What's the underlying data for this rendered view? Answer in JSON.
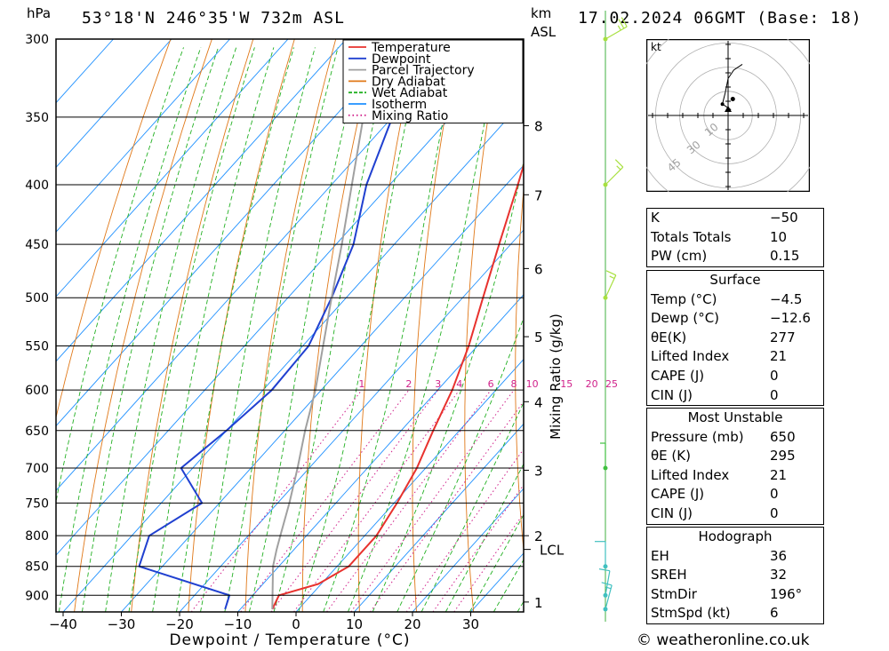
{
  "header": {
    "location": "53°18'N  246°35'W  732m  ASL",
    "datetime": "17.02.2024  06GMT  (Base: 18)",
    "left_unit": "hPa",
    "right_unit_km": "km",
    "right_unit_asl": "ASL"
  },
  "footer": {
    "copyright": "© weatheronline.co.uk"
  },
  "chart_data": [
    {
      "type": "line",
      "name": "skew-t log-p diagram",
      "xlabel": "Dewpoint / Temperature (°C)",
      "ylabel": "",
      "y_scale": "log-pressure",
      "y_ticks": [
        300,
        350,
        400,
        450,
        500,
        550,
        600,
        650,
        700,
        750,
        800,
        850,
        900
      ],
      "x_ticks": [
        -40,
        -30,
        -20,
        -10,
        0,
        10,
        20,
        30
      ],
      "xlim": [
        -40,
        38
      ],
      "ylim": [
        930,
        300
      ],
      "km_ticks": [
        {
          "km": "1",
          "p": 912
        },
        {
          "km": "2",
          "p": 800
        },
        {
          "km": "3",
          "p": 703
        },
        {
          "km": "4",
          "p": 614
        },
        {
          "km": "5",
          "p": 540
        },
        {
          "km": "6",
          "p": 472
        },
        {
          "km": "7",
          "p": 408
        },
        {
          "km": "8",
          "p": 356
        }
      ],
      "lcl": {
        "label": "LCL",
        "p": 822
      },
      "mixing_ratio_axis_label": "Mixing Ratio (g/kg)",
      "mixing_ratio_values": [
        "1",
        "2",
        "3",
        "4",
        "6",
        "8",
        "10",
        "15",
        "20",
        "25"
      ],
      "legend": {
        "placement": "top-right of plot",
        "entries": [
          {
            "label": "Temperature",
            "color": "#e8322e",
            "style": "solid"
          },
          {
            "label": "Dewpoint",
            "color": "#2040d0",
            "style": "solid"
          },
          {
            "label": "Parcel Trajectory",
            "color": "#a0a0a0",
            "style": "solid"
          },
          {
            "label": "Dry Adiabat",
            "color": "#e07818",
            "style": "solid"
          },
          {
            "label": "Wet Adiabat",
            "color": "#22b022",
            "style": "dashed"
          },
          {
            "label": "Isotherm",
            "color": "#1e90ff",
            "style": "solid"
          },
          {
            "label": "Mixing Ratio",
            "color": "#d0208a",
            "style": "dotted"
          }
        ]
      },
      "series": [
        {
          "name": "Temperature",
          "color": "#e8322e",
          "points": [
            {
              "p": 925,
              "t": -4.5
            },
            {
              "p": 900,
              "t": -5.5
            },
            {
              "p": 880,
              "t": -0.5
            },
            {
              "p": 850,
              "t": 2.0
            },
            {
              "p": 800,
              "t": 2.0
            },
            {
              "p": 750,
              "t": 0.5
            },
            {
              "p": 700,
              "t": -1.5
            },
            {
              "p": 650,
              "t": -4.5
            },
            {
              "p": 600,
              "t": -7.5
            },
            {
              "p": 550,
              "t": -11.5
            },
            {
              "p": 500,
              "t": -16.5
            },
            {
              "p": 450,
              "t": -22.0
            },
            {
              "p": 400,
              "t": -28.0
            },
            {
              "p": 350,
              "t": -35.0
            },
            {
              "p": 300,
              "t": -43.0
            }
          ]
        },
        {
          "name": "Dewpoint",
          "color": "#2040d0",
          "points": [
            {
              "p": 925,
              "t": -12.6
            },
            {
              "p": 900,
              "t": -14.0
            },
            {
              "p": 850,
              "t": -34.0
            },
            {
              "p": 800,
              "t": -37.0
            },
            {
              "p": 750,
              "t": -33.0
            },
            {
              "p": 700,
              "t": -42.0
            },
            {
              "p": 650,
              "t": -40.0
            },
            {
              "p": 600,
              "t": -38.5
            },
            {
              "p": 550,
              "t": -39.0
            },
            {
              "p": 500,
              "t": -42.5
            },
            {
              "p": 450,
              "t": -47.0
            },
            {
              "p": 400,
              "t": -54.0
            },
            {
              "p": 350,
              "t": -60.0
            },
            {
              "p": 300,
              "t": -73.0
            }
          ]
        },
        {
          "name": "Parcel Trajectory",
          "color": "#a0a0a0",
          "points": [
            {
              "p": 925,
              "t": -4.5
            },
            {
              "p": 850,
              "t": -11.0
            },
            {
              "p": 822,
              "t": -13.0
            },
            {
              "p": 800,
              "t": -14.5
            },
            {
              "p": 750,
              "t": -18.0
            },
            {
              "p": 700,
              "t": -22.0
            },
            {
              "p": 650,
              "t": -26.5
            },
            {
              "p": 600,
              "t": -31.0
            },
            {
              "p": 550,
              "t": -36.5
            },
            {
              "p": 500,
              "t": -42.5
            },
            {
              "p": 450,
              "t": -49.0
            },
            {
              "p": 400,
              "t": -56.5
            },
            {
              "p": 350,
              "t": -65.0
            },
            {
              "p": 300,
              "t": -75.0
            }
          ]
        }
      ]
    },
    {
      "type": "line",
      "name": "hodograph",
      "unit_label": "kt",
      "ring_labels": [
        "10",
        "30",
        "45"
      ],
      "points_kt": [
        {
          "u": 1,
          "v": 2
        },
        {
          "u": -2,
          "v": 4
        },
        {
          "u": -1,
          "v": 8
        },
        {
          "u": 0,
          "v": 13
        },
        {
          "u": 2,
          "v": 16
        },
        {
          "u": 5,
          "v": 18
        }
      ],
      "storm_motion": {
        "dir_deg": 196,
        "speed_kt": 6
      }
    }
  ],
  "wind_profile": {
    "levels": [
      {
        "p": 300,
        "dir": 240,
        "kt": 25,
        "color": "#a8e040"
      },
      {
        "p": 400,
        "dir": 225,
        "kt": 15,
        "color": "#a8e040"
      },
      {
        "p": 500,
        "dir": 205,
        "kt": 15,
        "color": "#a8e040"
      },
      {
        "p": 700,
        "dir": 180,
        "kt": 5,
        "color": "#40c040"
      },
      {
        "p": 850,
        "dir": 180,
        "kt": 10,
        "color": "#40c0c0"
      },
      {
        "p": 900,
        "dir": 190,
        "kt": 10,
        "color": "#40c0c0"
      },
      {
        "p": 925,
        "dir": 195,
        "kt": 15,
        "color": "#40c0c0"
      }
    ]
  },
  "indices": {
    "basic": [
      {
        "label": "K",
        "value": "−50"
      },
      {
        "label": "Totals Totals",
        "value": "10"
      },
      {
        "label": "PW (cm)",
        "value": "0.15"
      }
    ],
    "surface": {
      "title": "Surface",
      "rows": [
        {
          "label": "Temp (°C)",
          "value": "−4.5"
        },
        {
          "label": "Dewp (°C)",
          "value": "−12.6"
        },
        {
          "label": "θE(K)",
          "value": "277"
        },
        {
          "label": "Lifted Index",
          "value": "21"
        },
        {
          "label": "CAPE (J)",
          "value": "0"
        },
        {
          "label": "CIN (J)",
          "value": "0"
        }
      ]
    },
    "most_unstable": {
      "title": "Most Unstable",
      "rows": [
        {
          "label": "Pressure (mb)",
          "value": "650"
        },
        {
          "label": "θE (K)",
          "value": "295"
        },
        {
          "label": "Lifted Index",
          "value": "21"
        },
        {
          "label": "CAPE (J)",
          "value": "0"
        },
        {
          "label": "CIN (J)",
          "value": "0"
        }
      ]
    },
    "hodograph": {
      "title": "Hodograph",
      "rows": [
        {
          "label": "EH",
          "value": "36"
        },
        {
          "label": "SREH",
          "value": "32"
        },
        {
          "label": "StmDir",
          "value": "196°"
        },
        {
          "label": "StmSpd (kt)",
          "value": "6"
        }
      ]
    }
  }
}
